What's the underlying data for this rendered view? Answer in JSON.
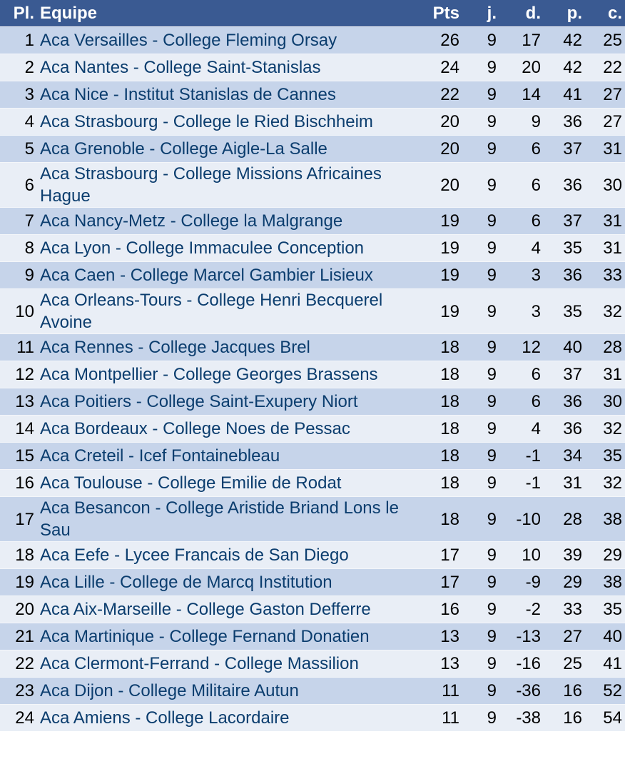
{
  "headers": {
    "pl": "Pl.",
    "team": "Equipe",
    "pts": "Pts",
    "j": "j.",
    "d": "d.",
    "p": "p.",
    "c": "c."
  },
  "colors": {
    "header_bg": "#3a5a92",
    "row_odd": "#c6d4ea",
    "row_even": "#e9eef6",
    "team_text": "#0b3d6e"
  },
  "rows": [
    {
      "pl": "1",
      "team": "Aca Versailles - College Fleming Orsay",
      "pts": "26",
      "j": "9",
      "d": "17",
      "p": "42",
      "c": "25"
    },
    {
      "pl": "2",
      "team": "Aca Nantes - College Saint-Stanislas",
      "pts": "24",
      "j": "9",
      "d": "20",
      "p": "42",
      "c": "22"
    },
    {
      "pl": "3",
      "team": "Aca Nice - Institut Stanislas de Cannes",
      "pts": "22",
      "j": "9",
      "d": "14",
      "p": "41",
      "c": "27"
    },
    {
      "pl": "4",
      "team": "Aca Strasbourg - College le Ried Bischheim",
      "pts": "20",
      "j": "9",
      "d": "9",
      "p": "36",
      "c": "27"
    },
    {
      "pl": "5",
      "team": "Aca Grenoble - College Aigle-La Salle",
      "pts": "20",
      "j": "9",
      "d": "6",
      "p": "37",
      "c": "31"
    },
    {
      "pl": "6",
      "team": "Aca Strasbourg - College Missions Africaines Hague",
      "pts": "20",
      "j": "9",
      "d": "6",
      "p": "36",
      "c": "30"
    },
    {
      "pl": "7",
      "team": "Aca Nancy-Metz - College la Malgrange",
      "pts": "19",
      "j": "9",
      "d": "6",
      "p": "37",
      "c": "31"
    },
    {
      "pl": "8",
      "team": "Aca Lyon - College Immaculee Conception",
      "pts": "19",
      "j": "9",
      "d": "4",
      "p": "35",
      "c": "31"
    },
    {
      "pl": "9",
      "team": "Aca Caen - College Marcel Gambier Lisieux",
      "pts": "19",
      "j": "9",
      "d": "3",
      "p": "36",
      "c": "33"
    },
    {
      "pl": "10",
      "team": "Aca Orleans-Tours - College Henri Becquerel Avoine",
      "pts": "19",
      "j": "9",
      "d": "3",
      "p": "35",
      "c": "32"
    },
    {
      "pl": "11",
      "team": "Aca Rennes - College Jacques Brel",
      "pts": "18",
      "j": "9",
      "d": "12",
      "p": "40",
      "c": "28"
    },
    {
      "pl": "12",
      "team": "Aca Montpellier - College Georges Brassens",
      "pts": "18",
      "j": "9",
      "d": "6",
      "p": "37",
      "c": "31"
    },
    {
      "pl": "13",
      "team": "Aca Poitiers - College Saint-Exupery Niort",
      "pts": "18",
      "j": "9",
      "d": "6",
      "p": "36",
      "c": "30"
    },
    {
      "pl": "14",
      "team": "Aca Bordeaux - College Noes de Pessac",
      "pts": "18",
      "j": "9",
      "d": "4",
      "p": "36",
      "c": "32"
    },
    {
      "pl": "15",
      "team": "Aca Creteil - Icef Fontainebleau",
      "pts": "18",
      "j": "9",
      "d": "-1",
      "p": "34",
      "c": "35"
    },
    {
      "pl": "16",
      "team": "Aca Toulouse - College Emilie de Rodat",
      "pts": "18",
      "j": "9",
      "d": "-1",
      "p": "31",
      "c": "32"
    },
    {
      "pl": "17",
      "team": "Aca Besancon - College Aristide Briand Lons le Sau",
      "pts": "18",
      "j": "9",
      "d": "-10",
      "p": "28",
      "c": "38"
    },
    {
      "pl": "18",
      "team": "Aca Eefe - Lycee Francais de San Diego",
      "pts": "17",
      "j": "9",
      "d": "10",
      "p": "39",
      "c": "29"
    },
    {
      "pl": "19",
      "team": "Aca Lille - College de Marcq Institution",
      "pts": "17",
      "j": "9",
      "d": "-9",
      "p": "29",
      "c": "38"
    },
    {
      "pl": "20",
      "team": "Aca Aix-Marseille - College Gaston Defferre",
      "pts": "16",
      "j": "9",
      "d": "-2",
      "p": "33",
      "c": "35"
    },
    {
      "pl": "21",
      "team": "Aca Martinique - College Fernand Donatien",
      "pts": "13",
      "j": "9",
      "d": "-13",
      "p": "27",
      "c": "40"
    },
    {
      "pl": "22",
      "team": "Aca Clermont-Ferrand - College Massilion",
      "pts": "13",
      "j": "9",
      "d": "-16",
      "p": "25",
      "c": "41"
    },
    {
      "pl": "23",
      "team": "Aca Dijon - College Militaire Autun",
      "pts": "11",
      "j": "9",
      "d": "-36",
      "p": "16",
      "c": "52"
    },
    {
      "pl": "24",
      "team": "Aca Amiens - College Lacordaire",
      "pts": "11",
      "j": "9",
      "d": "-38",
      "p": "16",
      "c": "54"
    }
  ]
}
